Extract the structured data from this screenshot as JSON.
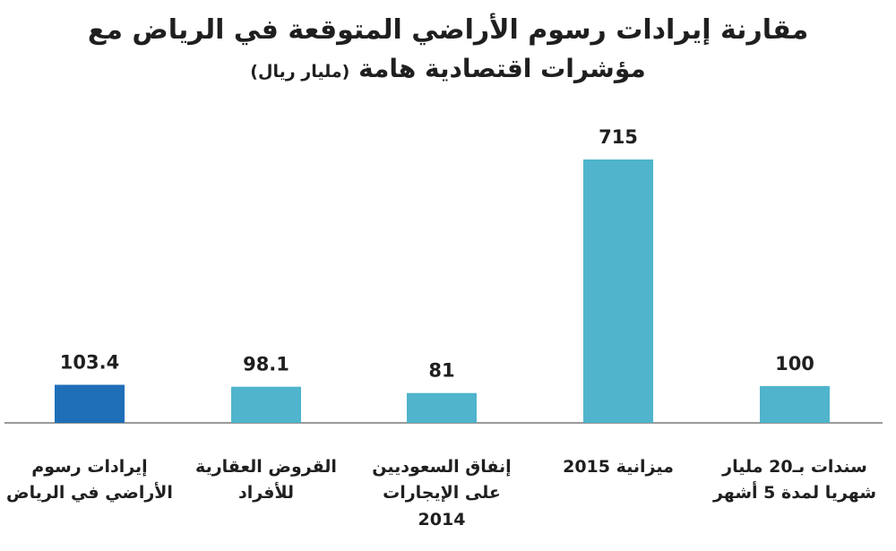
{
  "title": {
    "line1": "مقارنة إيرادات رسوم الأراضي المتوقعة في الرياض مع",
    "line2": "مؤشرات اقتصادية هامة",
    "unit": "(مليار ريال)"
  },
  "chart_data": {
    "type": "bar",
    "categories": [
      "إيرادات رسوم\nالأراضي في الرياض",
      "القروض العقارية\nللأفراد",
      "إنفاق السعوديين\nعلى الإيجارات\n2014",
      "ميزانية 2015",
      "سندات بـ20 مليار\nشهريا لمدة 5 أشهر"
    ],
    "values": [
      103.4,
      98.1,
      81,
      715,
      100
    ],
    "value_labels": [
      "103.4",
      "98.1",
      "81",
      "715",
      "100"
    ],
    "ylim": [
      0,
      715
    ],
    "grid": false,
    "colors": [
      "#1f6fb8",
      "#4fb4cc",
      "#4fb4cc",
      "#4fb4cc",
      "#4fb4cc"
    ]
  }
}
